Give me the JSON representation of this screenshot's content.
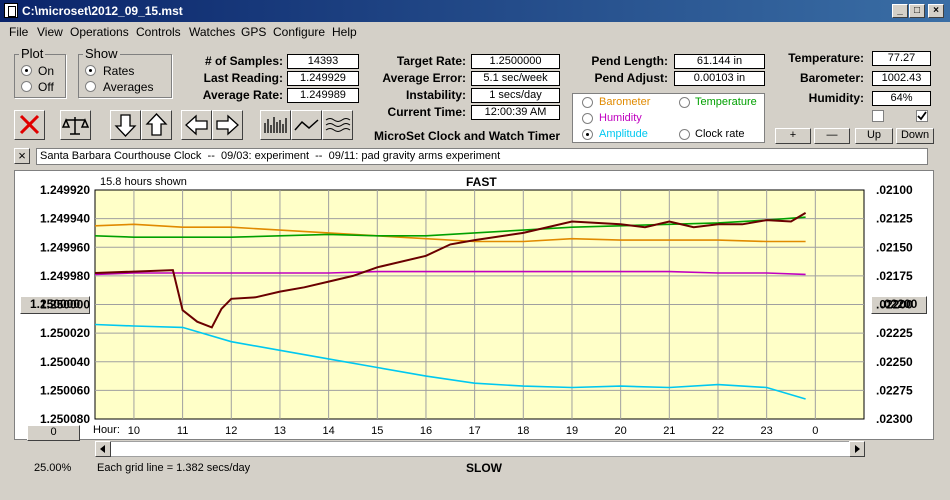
{
  "window": {
    "title": "C:\\microset\\2012_09_15.mst"
  },
  "menu": [
    "File",
    "View",
    "Operations",
    "Controls",
    "Watches",
    "GPS",
    "Configure",
    "Help"
  ],
  "plot_group": {
    "label": "Plot",
    "on": "On",
    "off": "Off",
    "selected": "On"
  },
  "show_group": {
    "label": "Show",
    "rates": "Rates",
    "averages": "Averages",
    "selected": "Rates"
  },
  "stats": {
    "samples_label": "# of Samples:",
    "samples": "14393",
    "last_reading_label": "Last Reading:",
    "last_reading": "1.249929",
    "average_rate_label": "Average Rate:",
    "average_rate": "1.249989",
    "target_rate_label": "Target Rate:",
    "target_rate": "1.2500000",
    "average_error_label": "Average Error:",
    "average_error": "5.1 sec/week",
    "instability_label": "Instability:",
    "instability": "1 secs/day",
    "current_time_label": "Current Time:",
    "current_time": "12:00:39 AM",
    "app_name": "MicroSet Clock and Watch Timer"
  },
  "pendulum": {
    "length_label": "Pend Length:",
    "length": "61.144 in",
    "adjust_label": "Pend Adjust:",
    "adjust": "0.00103 in"
  },
  "env": {
    "temperature_label": "Temperature:",
    "temperature": "77.27",
    "barometer_label": "Barometer:",
    "barometer": "1002.43",
    "humidity_label": "Humidity:",
    "humidity": "64%",
    "buttons": [
      "+",
      "—",
      "Up",
      "Down"
    ]
  },
  "sensors": [
    {
      "label": "Barometer",
      "color": "#e08a00",
      "selected": false
    },
    {
      "label": "Temperature",
      "color": "#00a000",
      "selected": false
    },
    {
      "label": "Humidity",
      "color": "#c000c0",
      "selected": false
    },
    {
      "label": "Amplitude",
      "color": "#00c8f0",
      "selected": true
    },
    {
      "label": "Clock rate",
      "color": "#000000",
      "selected": false
    }
  ],
  "notes": "Santa Barbara Courthouse Clock  --  09/03: experiment  --  09/11: pad gravity arms experiment",
  "chart_header": {
    "hours_shown": "15.8 hours shown",
    "top": "FAST",
    "bottom": "SLOW",
    "grid_note": "Each grid line = 1.382 secs/day",
    "zoom": "25.00%"
  },
  "axis_buttons": {
    "center": "1.250000",
    "right_center": ".02200",
    "x_reset": "0"
  },
  "chart_data": {
    "type": "line",
    "x_label": "Hour:",
    "x_ticks": [
      "10",
      "11",
      "12",
      "13",
      "14",
      "15",
      "16",
      "17",
      "18",
      "19",
      "20",
      "21",
      "22",
      "23",
      "0"
    ],
    "left_ticks": [
      "1.249920",
      "1.249940",
      "1.249960",
      "1.249980",
      "1.250000",
      "1.250020",
      "1.250040",
      "1.250060",
      "1.250080"
    ],
    "right_ticks": [
      ".02100",
      ".02125",
      ".02150",
      ".02175",
      ".02200",
      ".02225",
      ".02250",
      ".02275",
      ".02300"
    ],
    "ylim_left": [
      1.24992,
      1.25008
    ],
    "left_inverted": true,
    "x_range": [
      9.2,
      25.0
    ],
    "series": [
      {
        "color": "#e08a00",
        "x": [
          9.2,
          10,
          11,
          12,
          13,
          14,
          15,
          16,
          17,
          18,
          19,
          20,
          21,
          22,
          23,
          23.8
        ],
        "y": [
          1.249945,
          1.249944,
          1.249946,
          1.249946,
          1.249948,
          1.24995,
          1.249952,
          1.249954,
          1.249956,
          1.249956,
          1.249954,
          1.249955,
          1.249955,
          1.249955,
          1.249956,
          1.249956
        ]
      },
      {
        "color": "#00a000",
        "x": [
          9.2,
          10,
          11,
          12,
          13,
          14,
          15,
          16,
          17,
          18,
          19,
          20,
          21,
          22,
          23,
          23.8
        ],
        "y": [
          1.249952,
          1.249953,
          1.249953,
          1.249953,
          1.249952,
          1.249951,
          1.249952,
          1.249952,
          1.24995,
          1.249948,
          1.249946,
          1.249945,
          1.249944,
          1.249943,
          1.249941,
          1.249939
        ]
      },
      {
        "color": "#c000c0",
        "x": [
          9.2,
          10,
          11,
          12,
          13,
          14,
          15,
          16,
          17,
          18,
          19,
          20,
          21,
          22,
          23,
          23.8
        ],
        "y": [
          1.249979,
          1.249978,
          1.249978,
          1.249978,
          1.249978,
          1.249978,
          1.249977,
          1.249977,
          1.249977,
          1.249977,
          1.249977,
          1.249977,
          1.249977,
          1.249978,
          1.249978,
          1.249979
        ]
      },
      {
        "color": "#00c8f0",
        "x": [
          9.2,
          10,
          11,
          12,
          13,
          14,
          15,
          16,
          17,
          18,
          19,
          20,
          21,
          22,
          23,
          23.8
        ],
        "y": [
          1.250014,
          1.250015,
          1.250016,
          1.250026,
          1.250032,
          1.250038,
          1.250044,
          1.25005,
          1.250055,
          1.250057,
          1.250058,
          1.250057,
          1.250058,
          1.250056,
          1.250058,
          1.250066
        ]
      },
      {
        "color": "#6a0000",
        "x": [
          9.2,
          10,
          10.8,
          11,
          11.3,
          11.6,
          11.8,
          12,
          12.5,
          13,
          13.5,
          14,
          14.5,
          15,
          16,
          16.5,
          17,
          18,
          19,
          20,
          20.5,
          21,
          21.5,
          22,
          22.5,
          23,
          23.5,
          23.8
        ],
        "y": [
          1.249978,
          1.249977,
          1.249976,
          1.250004,
          1.250012,
          1.250016,
          1.250003,
          1.249996,
          1.249995,
          1.249991,
          1.249988,
          1.249984,
          1.24998,
          1.249974,
          1.249966,
          1.249958,
          1.249955,
          1.24995,
          1.249942,
          1.249944,
          1.249946,
          1.249942,
          1.249946,
          1.249944,
          1.249944,
          1.249941,
          1.249942,
          1.249936
        ]
      }
    ]
  }
}
